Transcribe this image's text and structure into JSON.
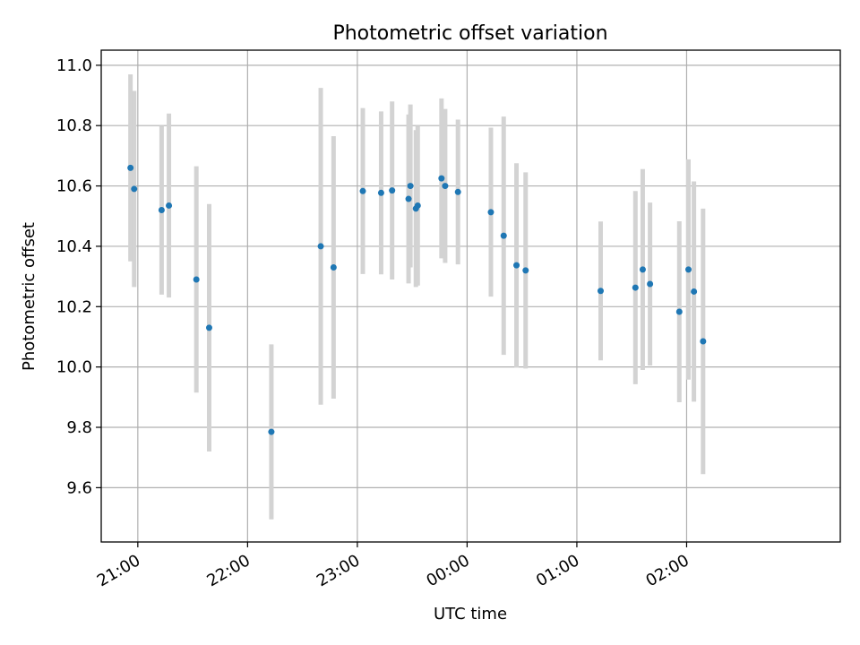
{
  "chart_data": {
    "type": "scatter",
    "title": "Photometric offset variation",
    "xlabel": "UTC time",
    "ylabel": "Photometric offset",
    "x_axis_kind": "time",
    "x_day_change": "00:00",
    "xlim": [
      "20:40",
      "03:24"
    ],
    "ylim": [
      9.42,
      11.05
    ],
    "x_ticks": [
      "21:00",
      "22:00",
      "23:00",
      "00:00",
      "01:00",
      "02:00"
    ],
    "y_ticks": [
      "9.6",
      "9.8",
      "10.0",
      "10.2",
      "10.4",
      "10.6",
      "10.8",
      "11.0"
    ],
    "grid": true,
    "colors": {
      "point": "#1f77b4",
      "errorbar": "#d3d3d3",
      "grid": "#b0b0b0"
    },
    "series": [
      {
        "points": [
          {
            "x": "20:56",
            "y": 10.66,
            "err": 0.31
          },
          {
            "x": "20:58",
            "y": 10.59,
            "err": 0.325
          },
          {
            "x": "21:13",
            "y": 10.52,
            "err": 0.28
          },
          {
            "x": "21:17",
            "y": 10.535,
            "err": 0.305
          },
          {
            "x": "21:32",
            "y": 10.29,
            "err": 0.375
          },
          {
            "x": "21:39",
            "y": 10.13,
            "err": 0.41
          },
          {
            "x": "22:13",
            "y": 9.785,
            "err": 0.29
          },
          {
            "x": "22:40",
            "y": 10.4,
            "err": 0.525
          },
          {
            "x": "22:47",
            "y": 10.33,
            "err": 0.435
          },
          {
            "x": "23:03",
            "y": 10.583,
            "err": 0.275
          },
          {
            "x": "23:13",
            "y": 10.577,
            "err": 0.27
          },
          {
            "x": "23:19",
            "y": 10.585,
            "err": 0.295
          },
          {
            "x": "23:28",
            "y": 10.557,
            "err": 0.28
          },
          {
            "x": "23:29",
            "y": 10.6,
            "err": 0.27
          },
          {
            "x": "23:32",
            "y": 10.525,
            "err": 0.26
          },
          {
            "x": "23:33",
            "y": 10.535,
            "err": 0.265
          },
          {
            "x": "23:46",
            "y": 10.625,
            "err": 0.265
          },
          {
            "x": "23:48",
            "y": 10.6,
            "err": 0.255
          },
          {
            "x": "23:55",
            "y": 10.58,
            "err": 0.24
          },
          {
            "x": "00:13",
            "y": 10.513,
            "err": 0.28
          },
          {
            "x": "00:20",
            "y": 10.435,
            "err": 0.395
          },
          {
            "x": "00:27",
            "y": 10.337,
            "err": 0.338
          },
          {
            "x": "00:32",
            "y": 10.32,
            "err": 0.325
          },
          {
            "x": "01:13",
            "y": 10.252,
            "err": 0.23
          },
          {
            "x": "01:32",
            "y": 10.263,
            "err": 0.32
          },
          {
            "x": "01:36",
            "y": 10.323,
            "err": 0.333
          },
          {
            "x": "01:40",
            "y": 10.275,
            "err": 0.27
          },
          {
            "x": "01:56",
            "y": 10.183,
            "err": 0.3
          },
          {
            "x": "02:01",
            "y": 10.323,
            "err": 0.365
          },
          {
            "x": "02:04",
            "y": 10.25,
            "err": 0.365
          },
          {
            "x": "02:09",
            "y": 10.085,
            "err": 0.44
          }
        ]
      }
    ]
  }
}
